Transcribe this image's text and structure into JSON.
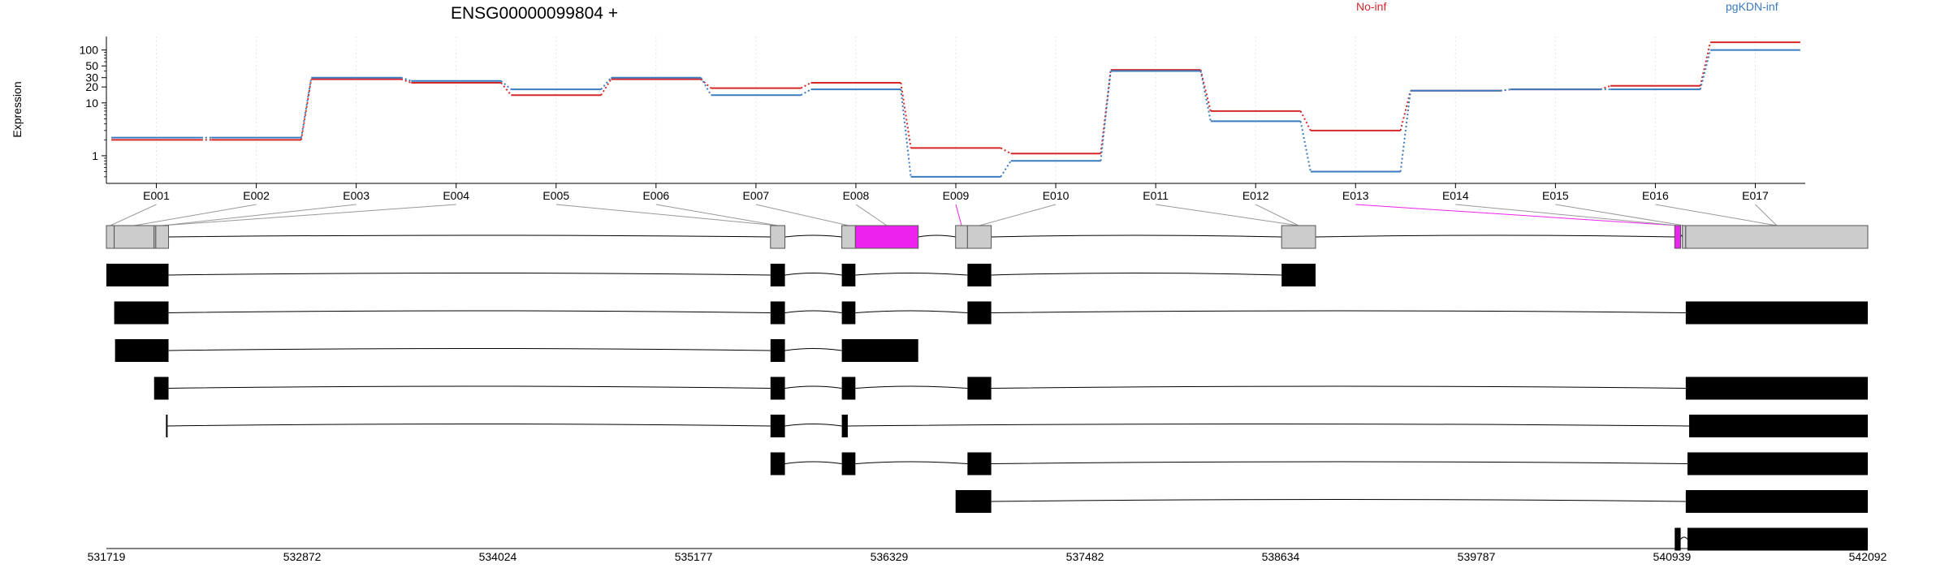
{
  "chart_data": {
    "type": "line",
    "title": "ENSG00000099804 +",
    "ylabel": "Expression",
    "yscale": "log",
    "ylim": [
      0.3,
      180
    ],
    "yticks": [
      1,
      10,
      20,
      30,
      50,
      100
    ],
    "grid": true,
    "legend_placement": "top",
    "categories": [
      "E001",
      "E002",
      "E003",
      "E004",
      "E005",
      "E006",
      "E007",
      "E008",
      "E009",
      "E010",
      "E011",
      "E012",
      "E013",
      "E014",
      "E015",
      "E016",
      "E017"
    ],
    "series": [
      {
        "name": "No-inf",
        "color": "#d62728",
        "values": [
          2.0,
          2.0,
          28,
          24,
          14,
          28,
          19,
          24,
          1.4,
          1.1,
          42,
          7,
          3.0,
          17,
          18,
          21,
          140
        ]
      },
      {
        "name": "pgKDN-inf",
        "color": "#3a7abf",
        "values": [
          2.2,
          2.2,
          30,
          26,
          18,
          30,
          14,
          18,
          0.4,
          0.8,
          40,
          4.5,
          0.5,
          17,
          18,
          18,
          100
        ]
      }
    ],
    "exon_highlight_color": "#ee22ee",
    "exon_color": "#cccccc",
    "transcript_color": "#000000",
    "genomic_axis_ticks": [
      "531719",
      "532872",
      "534024",
      "535177",
      "536329",
      "537482",
      "538634",
      "539787",
      "540939",
      "542092"
    ]
  }
}
